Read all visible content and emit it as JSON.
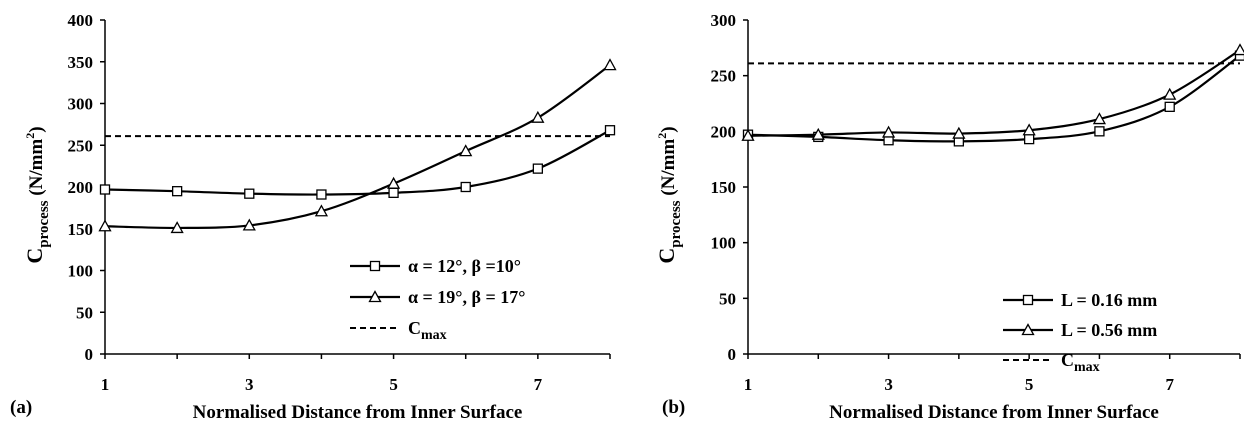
{
  "chart_data": [
    {
      "type": "line",
      "panel_label": "(a)",
      "xlabel": "Normalised Distance from Inner Surface",
      "ylabel_main": "C",
      "ylabel_sub": "process",
      "ylabel_unit_pre": " (N/mm",
      "ylabel_unit_sup": "2",
      "ylabel_unit_post": ")",
      "xlim": [
        1,
        8
      ],
      "ylim": [
        0,
        400
      ],
      "xticks": [
        1,
        3,
        5,
        7
      ],
      "yticks": [
        0,
        50,
        100,
        150,
        200,
        250,
        300,
        350,
        400
      ],
      "grid": false,
      "legend_position": "bottom-right",
      "series": [
        {
          "name": "α = 12°, β =10°",
          "marker": "square",
          "x": [
            1,
            2,
            3,
            4,
            5,
            6,
            7,
            8
          ],
          "y": [
            197,
            195,
            192,
            191,
            193,
            200,
            222,
            268
          ]
        },
        {
          "name": "α = 19°, β = 17°",
          "marker": "triangle",
          "x": [
            1,
            2,
            3,
            4,
            5,
            6,
            7,
            8
          ],
          "y": [
            153,
            151,
            154,
            171,
            204,
            243,
            283,
            346
          ]
        }
      ],
      "reference_line": {
        "name_main": "C",
        "name_sub": "max",
        "y": 261
      }
    },
    {
      "type": "line",
      "panel_label": "(b)",
      "xlabel": "Normalised Distance from Inner Surface",
      "ylabel_main": "C",
      "ylabel_sub": "process",
      "ylabel_unit_pre": " (N/mm",
      "ylabel_unit_sup": "2",
      "ylabel_unit_post": ")",
      "xlim": [
        1,
        8
      ],
      "ylim": [
        0,
        300
      ],
      "xticks": [
        1,
        3,
        5,
        7
      ],
      "yticks": [
        0,
        50,
        100,
        150,
        200,
        250,
        300
      ],
      "grid": false,
      "legend_position": "bottom-right",
      "series": [
        {
          "name": "L = 0.16 mm",
          "marker": "square",
          "x": [
            1,
            2,
            3,
            4,
            5,
            6,
            7,
            8
          ],
          "y": [
            197,
            195,
            192,
            191,
            193,
            200,
            222,
            268
          ]
        },
        {
          "name": "L = 0.56 mm",
          "marker": "triangle",
          "x": [
            1,
            2,
            3,
            4,
            5,
            6,
            7,
            8
          ],
          "y": [
            196,
            197,
            199,
            198,
            201,
            211,
            233,
            273
          ]
        }
      ],
      "reference_line": {
        "name_main": "C",
        "name_sub": "max",
        "y": 261
      }
    }
  ]
}
